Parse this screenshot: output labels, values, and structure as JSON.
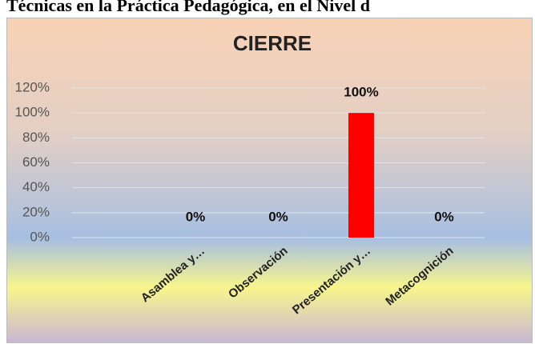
{
  "header": {
    "title": "Técnicas en la Práctica Pedagógica, en el Nivel d"
  },
  "chart_data": {
    "type": "bar",
    "title": "CIERRE",
    "categories": [
      "Asamblea y…",
      "Observación",
      "Presentación y…",
      "Metacognición"
    ],
    "values": [
      0,
      0,
      100,
      0
    ],
    "value_labels": [
      "0%",
      "0%",
      "100%",
      "0%"
    ],
    "color": "#ff0000",
    "ylim": [
      0,
      120
    ],
    "yticks": [
      {
        "value": 0,
        "label": "0%"
      },
      {
        "value": 20,
        "label": "20%"
      },
      {
        "value": 40,
        "label": "40%"
      },
      {
        "value": 60,
        "label": "60%"
      },
      {
        "value": 80,
        "label": "80%"
      },
      {
        "value": 100,
        "label": "100%"
      },
      {
        "value": 120,
        "label": "120%"
      }
    ],
    "grid": true
  }
}
